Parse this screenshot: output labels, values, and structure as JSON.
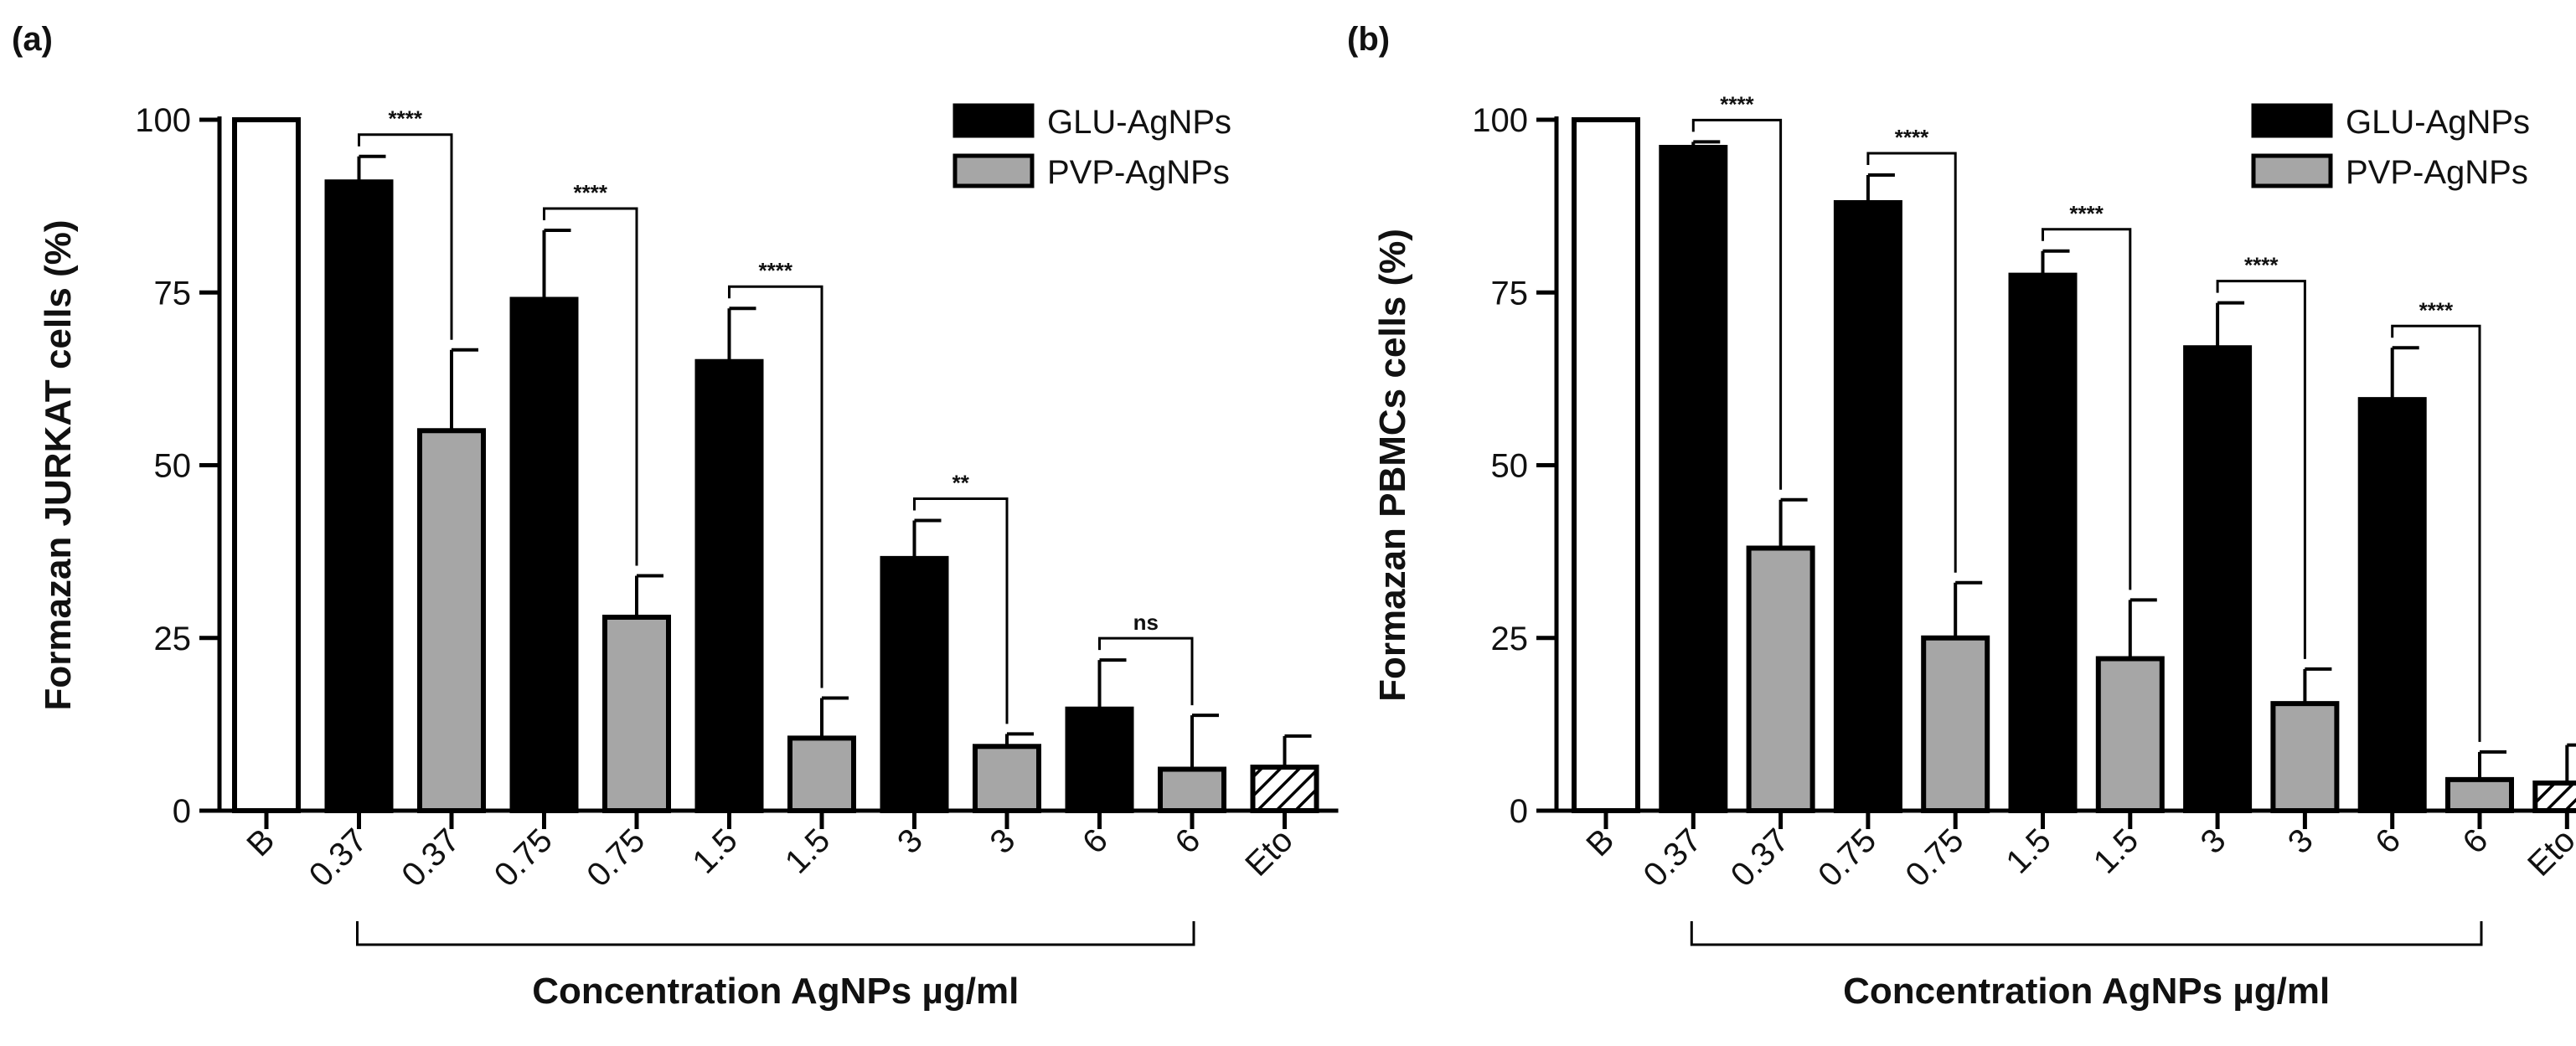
{
  "chart_data": [
    {
      "panel_label": "(a)",
      "type": "bar",
      "ylabel": "Formazan JURKAT cells (%)",
      "xlabel": "Concentration AgNPs µg/ml",
      "ylim": [
        0,
        100
      ],
      "yticks": [
        0,
        25,
        50,
        75,
        100
      ],
      "legend": {
        "position": "top-right",
        "entries": [
          "GLU-AgNPs",
          "PVP-AgNPs"
        ]
      },
      "bars": [
        {
          "category": "B",
          "series": "Blank",
          "value": 100,
          "error": 0
        },
        {
          "category": "0.37",
          "series": "GLU-AgNPs",
          "value": 91,
          "error": 3.7
        },
        {
          "category": "0.37",
          "series": "PVP-AgNPs",
          "value": 55,
          "error": 11.7
        },
        {
          "category": "0.75",
          "series": "GLU-AgNPs",
          "value": 74,
          "error": 10
        },
        {
          "category": "0.75",
          "series": "PVP-AgNPs",
          "value": 28,
          "error": 6
        },
        {
          "category": "1.5",
          "series": "GLU-AgNPs",
          "value": 65,
          "error": 7.7
        },
        {
          "category": "1.5",
          "series": "PVP-AgNPs",
          "value": 10.5,
          "error": 5.8
        },
        {
          "category": "3",
          "series": "GLU-AgNPs",
          "value": 36.5,
          "error": 5.5
        },
        {
          "category": "3",
          "series": "PVP-AgNPs",
          "value": 9.3,
          "error": 1.8
        },
        {
          "category": "6",
          "series": "GLU-AgNPs",
          "value": 14.7,
          "error": 7.1
        },
        {
          "category": "6",
          "series": "PVP-AgNPs",
          "value": 6,
          "error": 7.8
        },
        {
          "category": "Eto",
          "series": "Etoposide",
          "value": 6.3,
          "error": 4.5
        }
      ],
      "significance": [
        {
          "from_bar": 1,
          "to_bar": 2,
          "label": "****"
        },
        {
          "from_bar": 3,
          "to_bar": 4,
          "label": "****"
        },
        {
          "from_bar": 5,
          "to_bar": 6,
          "label": "****"
        },
        {
          "from_bar": 7,
          "to_bar": 8,
          "label": "**"
        },
        {
          "from_bar": 9,
          "to_bar": 10,
          "label": "ns"
        }
      ]
    },
    {
      "panel_label": "(b)",
      "type": "bar",
      "ylabel": "Formazan PBMCs cells (%)",
      "xlabel": "Concentration AgNPs µg/ml",
      "ylim": [
        0,
        100
      ],
      "yticks": [
        0,
        25,
        50,
        75,
        100
      ],
      "legend": {
        "position": "top-right",
        "entries": [
          "GLU-AgNPs",
          "PVP-AgNPs"
        ]
      },
      "bars": [
        {
          "category": "B",
          "series": "Blank",
          "value": 100,
          "error": 0
        },
        {
          "category": "0.37",
          "series": "GLU-AgNPs",
          "value": 96,
          "error": 0.8
        },
        {
          "category": "0.37",
          "series": "PVP-AgNPs",
          "value": 38,
          "error": 7
        },
        {
          "category": "0.75",
          "series": "GLU-AgNPs",
          "value": 88,
          "error": 4
        },
        {
          "category": "0.75",
          "series": "PVP-AgNPs",
          "value": 25,
          "error": 8
        },
        {
          "category": "1.5",
          "series": "GLU-AgNPs",
          "value": 77.5,
          "error": 3.5
        },
        {
          "category": "1.5",
          "series": "PVP-AgNPs",
          "value": 22,
          "error": 8.5
        },
        {
          "category": "3",
          "series": "GLU-AgNPs",
          "value": 67,
          "error": 6.5
        },
        {
          "category": "3",
          "series": "PVP-AgNPs",
          "value": 15.5,
          "error": 5
        },
        {
          "category": "6",
          "series": "GLU-AgNPs",
          "value": 59.5,
          "error": 7.5
        },
        {
          "category": "6",
          "series": "PVP-AgNPs",
          "value": 4.5,
          "error": 4
        },
        {
          "category": "Eto",
          "series": "Etoposide",
          "value": 4,
          "error": 5.5
        }
      ],
      "significance": [
        {
          "from_bar": 1,
          "to_bar": 2,
          "label": "****"
        },
        {
          "from_bar": 3,
          "to_bar": 4,
          "label": "****"
        },
        {
          "from_bar": 5,
          "to_bar": 6,
          "label": "****"
        },
        {
          "from_bar": 7,
          "to_bar": 8,
          "label": "****"
        },
        {
          "from_bar": 9,
          "to_bar": 10,
          "label": "****"
        }
      ]
    }
  ],
  "colors": {
    "Blank": "#ffffff",
    "GLU-AgNPs": "#000000",
    "PVP-AgNPs": "#a6a6a6",
    "Etoposide": "hatch",
    "stroke": "#000000"
  }
}
